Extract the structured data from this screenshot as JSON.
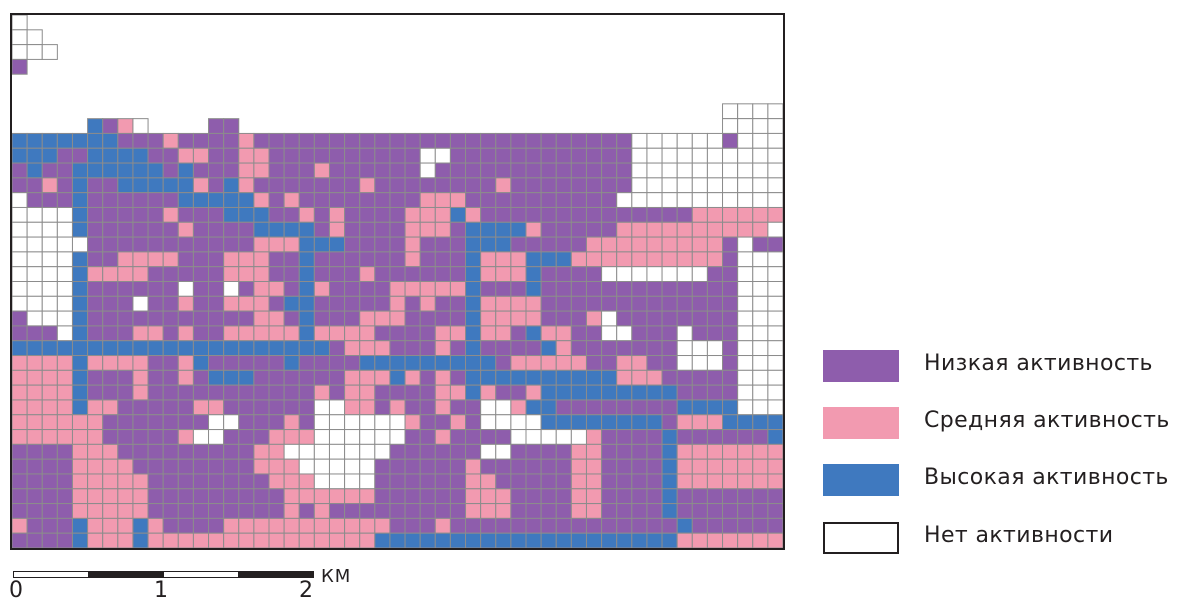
{
  "colors": {
    "low": "#8e5dac",
    "medium": "#f29ab0",
    "high": "#3f79bf",
    "none": "#ffffff",
    "grid": "#8c8c8c"
  },
  "legend": [
    {
      "key": "low",
      "label": "Низкая активность"
    },
    {
      "key": "medium",
      "label": "Средняя активность"
    },
    {
      "key": "high",
      "label": "Высокая активность"
    },
    {
      "key": "none",
      "label": "Нет активности"
    }
  ],
  "scale_bar": {
    "unit": "КМ",
    "ticks": [
      "0",
      "1",
      "2"
    ]
  },
  "grid": {
    "cols": 51,
    "rows": 36,
    "legend_codes": {
      "L": "low",
      "M": "medium",
      "H": "high",
      "N": "none",
      ".": "outside"
    },
    "cells": [
      "N..................................................",
      "NN.................................................",
      "NNN................................................",
      "L..................................................",
      "...................................................",
      "...................................................",
      "...............................................NNNN",
      ".....HLMN....LL................................NNNN",
      "HHHHHHHLLLMLLLLMLLLLLLLLLLLLLLLLLLLLLLLLLNNNNNNLNNN",
      "HHHLLHHHHLLMMLLMMLLLLLLLLLLNNLLLLLLLLLLLLNNNNNNNNNN",
      "LHLLHHHHHHLHLLLMMLLLMLLLLLLNLLLLLLLLLLLLLNNNNNNNNNN",
      "LLMLHLLHHHHHMLHMLLLLLLLMLLLLLLLLMLLLLLLLLNNNNNNNNNN",
      "NLLLHLLLLLLHHHHHMLMLLLLLLLLMMMLLLLLLLLLLNNNNNNNNNNN",
      "NNNNHLLLLLMLLLHHHLLMLMLLLLMMMHMLLLLLLLLLLLLLLMMMMMM",
      "NNNNHLLLLLLMLLLLHHHHLMLLLLMMMLHHHHMLLLLLMMMMMMMMMMN",
      "NNNNNLLLLLLLLLLLMMMHHHLLLLMLLLHHHLLLLLMMMMMMMMMLNLL",
      "NNNNHLLMMMMLLLMMMLLHLLLLLLMLLLHMMMHHHMMMMMMMMMMLNNN",
      "NNNNHMMMMLLLLLMMMLLHLLLMLLLLLLHMMMHLLLLNNNNNNNLLNNN",
      "NNNNHLLLLLLNLLNLMMLHMLLLLMMMMMHLLLHLLLLLLLLLLLLLNNN",
      "NNNNHLLLNLLMLLMMMLHHLLLLLMLMLLHMMMMLLLLLLLLLLLLLNNN",
      "LNNNHLLLLLLLLLLLMMLHLLLMMMLLLLHMMMMLLLMNLLLLLLLLNNN",
      "LLLNHLLLMMLMLLMMMMMHMMMMLLLLMMHMMLHMMLLNNLLLNLLLNNN",
      "HHHHHHHHHHHHHHHHHHHHHLMMMLLLMLHLLLLHMLLLLLLLNNNLNNN",
      "MMMMHMMMMLLMHLLLLLHLLLLHHHHHHHHHLMMMMMLLMMLLNNNLNNN",
      "MMMMHLLLMLLMLHHHLLLLLLMMMHMLMLHHHHHHHHHHMMMLLLLLNNN",
      "MMMMHLLLMLLLLLLLLLLLMLMMLLLLMMHMLLMHHHHHHHHHLLLLNNN",
      "MMMMHMMLLLLLMMLLLLLLNNMMLMLLMLLNNMHHLLLLLLLLHHHHNNN",
      "MMMMMMLLLLLLLNNLLLMLNNNNNNMLLMLNNNNHHHHHHHHLMMMHHHH",
      "MMMMMMLLLLLMNNLLLMMMNNNNNNLLMLLLLNNNNNMLLLLHLLLLLLH",
      "LLLLMMMLLLLLLLLLMMNNNNNNNLLLLLLNNLLLLMMLLLLHMMMMMMM",
      "LLLLMMMMLLLLLLLLMMMNNNNNLLLLLLMLLLLLLMMLLLLHMMMMMMM",
      "LLLLMMMMMLLLLLLLLMMMNNNNLLLLLLMMLLLLLMMLLLLHMMMMMMM",
      "LLLLMMMMMLLLLLLLLLMMMMMMLLLLLLMMMLLLLMMLLLLHLLLLLLL",
      "LLLLMMMMMLLLLLLLLLMLMLLLLLLLLLMMMLLLLMMLLLLHLLLLLLL",
      "MLLLHMMMHMLLLLMMMMMMMMMMMLLLMLLLLLLLLLLLLLLLHLLLLLLL",
      "LLLLHMMMHMMMMMMMMMMMMMMMHHHHHHHHHHHHHHHHHHHHMMMMMMM"
    ]
  }
}
